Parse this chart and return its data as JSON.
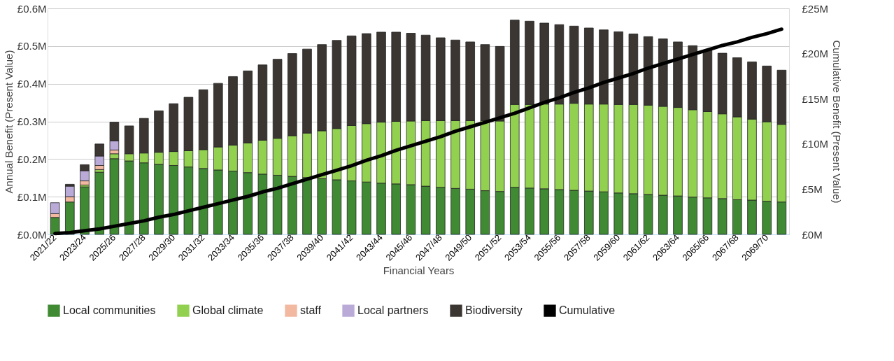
{
  "chart_data": {
    "type": "bar",
    "stacked": true,
    "xlabel": "Financial Years",
    "ylabel": "Annual Benefit (Present Value)",
    "y2label": "Cumulative Benefit (Present Value)",
    "categories": [
      "2021/22",
      null,
      "2023/24",
      null,
      "2025/26",
      null,
      "2027/28",
      null,
      "2029/30",
      null,
      "2031/32",
      null,
      "2033/34",
      null,
      "2035/36",
      null,
      "2037/38",
      null,
      "2039/40",
      null,
      "2041/42",
      null,
      "2043/44",
      null,
      "2045/46",
      null,
      "2047/48",
      null,
      "2049/50",
      null,
      "2051/52",
      null,
      "2053/54",
      null,
      "2055/56",
      null,
      "2057/58",
      null,
      "2059/60",
      null,
      "2061/62",
      null,
      "2063/64",
      null,
      "2065/66",
      null,
      "2067/68",
      null,
      "2069/70",
      null
    ],
    "ylim": [
      0,
      0.6
    ],
    "yticks": [
      {
        "value": 0,
        "label": "£0.0M"
      },
      {
        "value": 0.1,
        "label": "£0.1M"
      },
      {
        "value": 0.2,
        "label": "£0.2M"
      },
      {
        "value": 0.3,
        "label": "£0.3M"
      },
      {
        "value": 0.4,
        "label": "£0.4M"
      },
      {
        "value": 0.5,
        "label": "£0.5M"
      },
      {
        "value": 0.6,
        "label": "£0.6M"
      }
    ],
    "y2lim": [
      0,
      25
    ],
    "y2ticks": [
      {
        "value": 0,
        "label": "£0M"
      },
      {
        "value": 5,
        "label": "£5M"
      },
      {
        "value": 10,
        "label": "£10M"
      },
      {
        "value": 15,
        "label": "£15M"
      },
      {
        "value": 20,
        "label": "£20M"
      },
      {
        "value": 25,
        "label": "£25M"
      }
    ],
    "grid": "y",
    "legend": "bottom",
    "series": [
      {
        "name": "Local communities",
        "color": "#3f8a32",
        "values": [
          0.045,
          0.086,
          0.126,
          0.165,
          0.201,
          0.195,
          0.19,
          0.186,
          0.183,
          0.179,
          0.175,
          0.171,
          0.168,
          0.164,
          0.16,
          0.157,
          0.154,
          0.151,
          0.148,
          0.145,
          0.142,
          0.139,
          0.136,
          0.134,
          0.132,
          0.128,
          0.125,
          0.122,
          0.12,
          0.116,
          0.114,
          0.125,
          0.123,
          0.121,
          0.119,
          0.117,
          0.115,
          0.113,
          0.11,
          0.108,
          0.106,
          0.104,
          0.102,
          0.099,
          0.097,
          0.095,
          0.092,
          0.091,
          0.088,
          0.086
        ]
      },
      {
        "name": "Global climate",
        "color": "#92d050",
        "values": [
          null,
          null,
          0.005,
          0.007,
          0.013,
          0.019,
          0.026,
          0.032,
          0.037,
          0.043,
          0.05,
          0.061,
          0.069,
          0.079,
          0.09,
          0.098,
          0.108,
          0.118,
          0.127,
          0.136,
          0.147,
          0.155,
          0.162,
          0.166,
          0.169,
          0.174,
          0.177,
          0.18,
          0.182,
          0.186,
          0.187,
          0.22,
          0.222,
          0.225,
          0.227,
          0.231,
          0.231,
          0.233,
          0.235,
          0.237,
          0.237,
          0.236,
          0.235,
          0.232,
          0.229,
          0.225,
          0.22,
          0.215,
          0.211,
          0.206
        ]
      },
      {
        "name": "staff",
        "color": "#f2b8a0",
        "values": [
          0.01,
          0.014,
          0.011,
          0.011,
          0.01,
          null,
          null,
          null,
          null,
          null,
          null,
          null,
          null,
          null,
          null,
          null,
          null,
          null,
          null,
          null,
          null,
          null,
          null,
          null,
          null,
          null,
          null,
          null,
          null,
          null,
          null,
          null,
          null,
          null,
          null,
          null,
          null,
          null,
          null,
          null,
          null,
          null,
          null,
          null,
          null,
          null,
          null,
          null,
          null,
          null
        ]
      },
      {
        "name": "Local partners",
        "color": "#b9aad8",
        "values": [
          0.029,
          0.028,
          0.027,
          0.025,
          0.024,
          null,
          null,
          null,
          null,
          null,
          null,
          null,
          null,
          null,
          null,
          null,
          null,
          null,
          null,
          null,
          null,
          null,
          null,
          null,
          null,
          null,
          null,
          null,
          null,
          null,
          null,
          null,
          null,
          null,
          null,
          null,
          null,
          null,
          null,
          null,
          null,
          null,
          null,
          null,
          null,
          null,
          null,
          null,
          null,
          null
        ]
      },
      {
        "name": "Biodiversity",
        "color": "#3b3632",
        "values": [
          null,
          0.005,
          0.016,
          0.032,
          0.05,
          0.074,
          0.092,
          0.11,
          0.127,
          0.142,
          0.159,
          0.169,
          0.182,
          0.191,
          0.2,
          0.21,
          0.218,
          0.223,
          0.229,
          0.234,
          0.238,
          0.239,
          0.239,
          0.237,
          0.233,
          0.227,
          0.22,
          0.214,
          0.209,
          0.202,
          0.198,
          0.224,
          0.221,
          0.215,
          0.211,
          0.205,
          0.202,
          0.197,
          0.193,
          0.187,
          0.182,
          0.179,
          0.174,
          0.17,
          0.163,
          0.161,
          0.157,
          0.152,
          0.148,
          0.144
        ]
      },
      {
        "name": "Cumulative",
        "type": "line",
        "axis": "y2",
        "color": "#000000",
        "values": [
          0.1,
          0.2,
          0.4,
          0.6,
          0.9,
          1.2,
          1.5,
          1.9,
          2.2,
          2.6,
          3.0,
          3.4,
          3.8,
          4.2,
          4.7,
          5.1,
          5.6,
          6.1,
          6.6,
          7.1,
          7.6,
          8.2,
          8.7,
          9.3,
          9.8,
          10.3,
          10.8,
          11.4,
          11.9,
          12.4,
          12.9,
          13.4,
          14.0,
          14.6,
          15.1,
          15.7,
          16.2,
          16.8,
          17.3,
          17.8,
          18.4,
          18.9,
          19.4,
          19.9,
          20.4,
          20.9,
          21.3,
          21.8,
          22.2,
          22.7
        ]
      }
    ]
  }
}
